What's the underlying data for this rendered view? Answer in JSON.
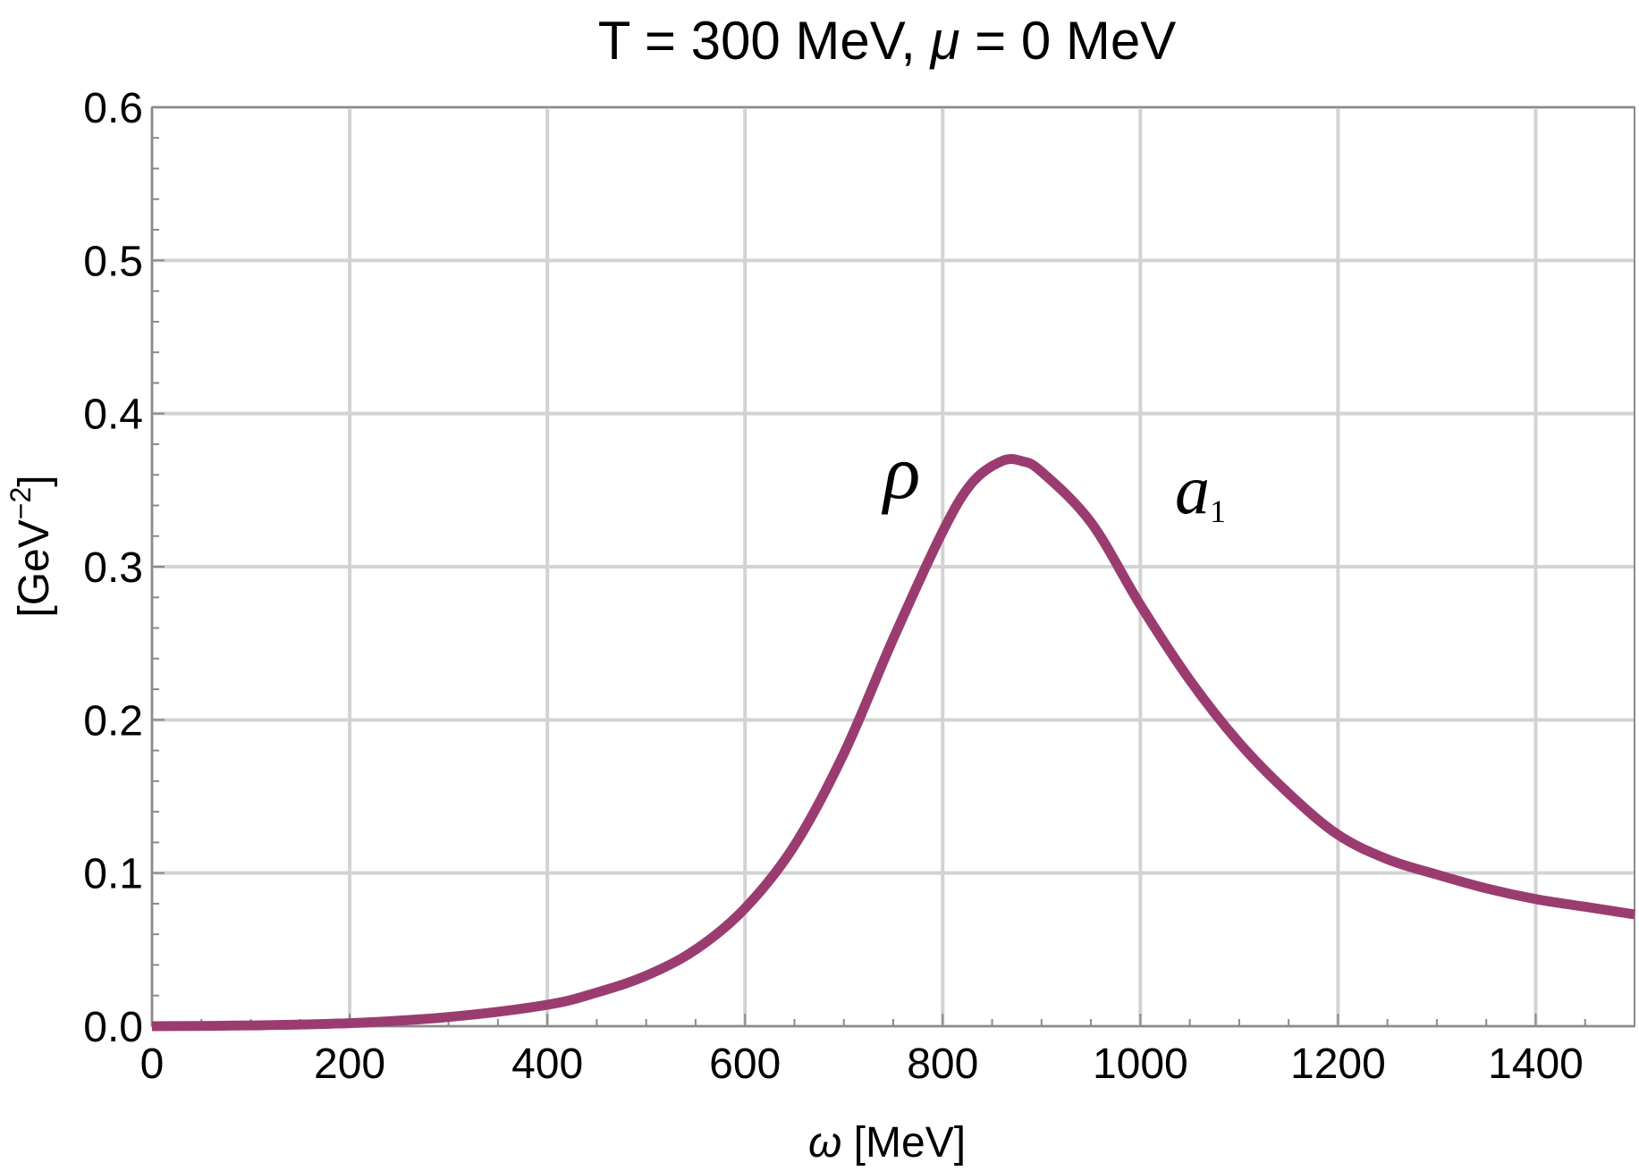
{
  "chart_data": {
    "type": "line",
    "title_parts": {
      "pre": "T = 300 MeV, ",
      "mu": "μ",
      "post": " = 0 MeV"
    },
    "xlabel": {
      "symbol": "ω",
      "unit": " [MeV]"
    },
    "ylabel": {
      "pre": "[GeV",
      "sup": "−2",
      "post": "]"
    },
    "xlim": [
      0,
      1500
    ],
    "ylim": [
      0,
      0.6
    ],
    "xticks": [
      0,
      200,
      400,
      600,
      800,
      1000,
      1200,
      1400
    ],
    "yticks": [
      0.0,
      0.1,
      0.2,
      0.3,
      0.4,
      0.5,
      0.6
    ],
    "ytick_labels": [
      "0.0",
      "0.1",
      "0.2",
      "0.3",
      "0.4",
      "0.5",
      "0.6"
    ],
    "grid": true,
    "series": [
      {
        "color": "#9b3c70",
        "x": [
          0,
          100,
          200,
          300,
          400,
          450,
          500,
          550,
          600,
          650,
          700,
          750,
          800,
          830,
          860,
          880,
          900,
          950,
          1000,
          1050,
          1100,
          1150,
          1200,
          1250,
          1300,
          1350,
          1400,
          1450,
          1500
        ],
        "y": [
          0.0,
          0.0005,
          0.002,
          0.006,
          0.014,
          0.022,
          0.033,
          0.05,
          0.077,
          0.118,
          0.178,
          0.253,
          0.323,
          0.355,
          0.369,
          0.369,
          0.362,
          0.329,
          0.275,
          0.226,
          0.185,
          0.152,
          0.125,
          0.109,
          0.099,
          0.09,
          0.083,
          0.078,
          0.073
        ]
      }
    ],
    "annotations": [
      {
        "text": "ρ",
        "x": 740,
        "y": 0.345
      },
      {
        "text": "a",
        "sub": "1",
        "x": 1035,
        "y": 0.335
      }
    ]
  }
}
